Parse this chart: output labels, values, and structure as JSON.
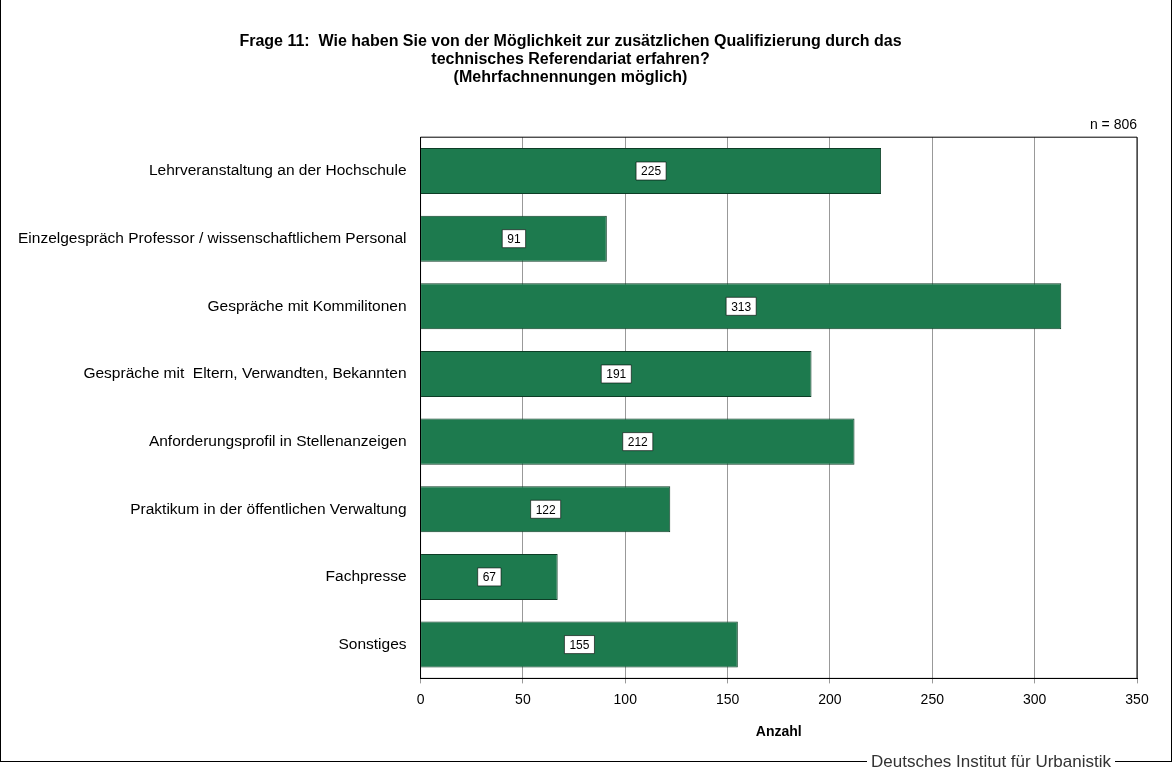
{
  "chart_data": {
    "type": "bar",
    "orientation": "horizontal",
    "title": "Frage 11:  Wie haben Sie von der Möglichkeit zur zusätzlichen Qualifizierung durch das\ntechnisches Referendariat erfahren?\n(Mehrfachnennungen möglich)",
    "xlabel": "Anzahl",
    "categories": [
      "Lehrveranstaltung an der Hochschule",
      "Einzelgespräch Professor / wissenschaftlichem Personal",
      "Gespräche mit Kommilitonen",
      "Gespräche mit  Eltern, Verwandten, Bekannten",
      "Anforderungsprofil in Stellenanzeigen",
      "Praktikum in der öffentlichen Verwaltung",
      "Fachpresse",
      "Sonstiges"
    ],
    "values": [
      225,
      91,
      313,
      191,
      212,
      122,
      67,
      155
    ],
    "color": "#1d7a4e",
    "xlim": [
      0,
      350
    ],
    "xticks": [
      0,
      50,
      100,
      150,
      200,
      250,
      300,
      350
    ],
    "grid": "x",
    "data_labels": true,
    "annotations": [
      "n = 806",
      "Deutsches Institut für Urbanistik"
    ]
  }
}
